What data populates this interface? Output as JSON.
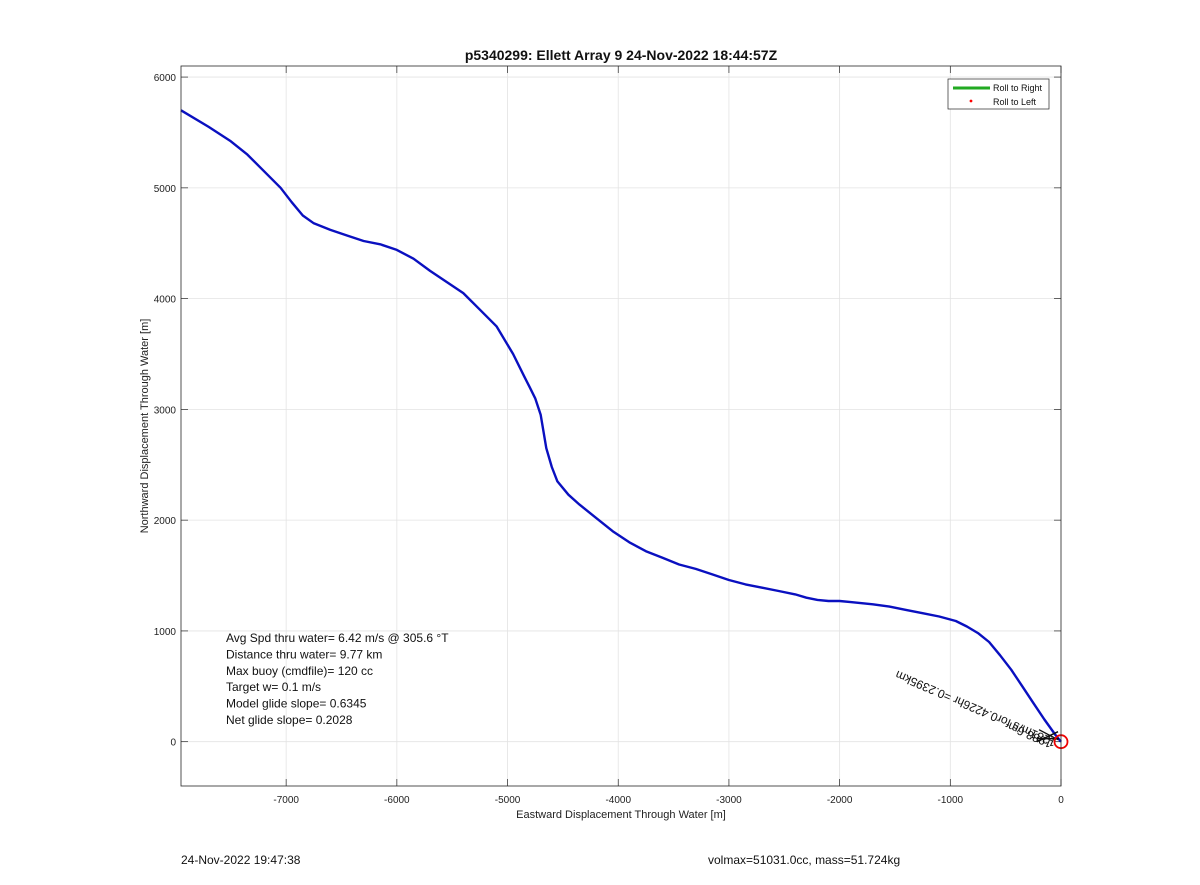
{
  "chart_data": {
    "type": "line",
    "title": "p5340299: Ellett Array 9 24-Nov-2022 18:44:57Z",
    "xlabel": "Eastward Displacement Through Water [m]",
    "ylabel": "Northward Displacement Through Water [m]",
    "xlim": [
      -7950,
      0
    ],
    "ylim": [
      -400,
      6100
    ],
    "xticks": [
      -7000,
      -6000,
      -5000,
      -4000,
      -3000,
      -2000,
      -1000,
      0
    ],
    "yticks": [
      0,
      1000,
      2000,
      3000,
      4000,
      5000,
      6000
    ],
    "grid": true,
    "legend": {
      "placement": "top-right",
      "entries": [
        {
          "label": "Roll to Right",
          "style": "line",
          "color": "#22aa22"
        },
        {
          "label": "Roll to Left",
          "style": "dot",
          "color": "#ff0000"
        }
      ]
    },
    "series": [
      {
        "color": "#0a10c0",
        "x": [
          -7950,
          -7700,
          -7500,
          -7350,
          -7200,
          -7050,
          -6950,
          -6850,
          -6750,
          -6600,
          -6450,
          -6300,
          -6150,
          -6000,
          -5850,
          -5700,
          -5550,
          -5400,
          -5250,
          -5100,
          -4950,
          -4850,
          -4800,
          -4750,
          -4700,
          -4650,
          -4600,
          -4550,
          -4450,
          -4350,
          -4200,
          -4050,
          -3900,
          -3750,
          -3600,
          -3450,
          -3300,
          -3150,
          -3000,
          -2850,
          -2700,
          -2550,
          -2400,
          -2300,
          -2200,
          -2100,
          -2000,
          -1900,
          -1800,
          -1700,
          -1550,
          -1400,
          -1250,
          -1100,
          -950,
          -850,
          -750,
          -650,
          -550,
          -450,
          -350,
          -250,
          -150,
          -50,
          0
        ],
        "y": [
          5700,
          5550,
          5420,
          5300,
          5150,
          5000,
          4870,
          4750,
          4680,
          4620,
          4570,
          4520,
          4490,
          4440,
          4360,
          4250,
          4150,
          4050,
          3900,
          3750,
          3500,
          3300,
          3200,
          3100,
          2950,
          2650,
          2480,
          2350,
          2230,
          2140,
          2020,
          1900,
          1800,
          1720,
          1660,
          1600,
          1560,
          1510,
          1460,
          1420,
          1390,
          1360,
          1330,
          1300,
          1280,
          1270,
          1270,
          1260,
          1250,
          1240,
          1220,
          1190,
          1160,
          1130,
          1090,
          1040,
          980,
          900,
          780,
          650,
          500,
          350,
          200,
          60,
          0
        ]
      }
    ],
    "annotations": {
      "arrow_label": "1281m/s for0.4226hr =0.2395km",
      "overlap_label": "1988.6m",
      "end_marker": {
        "x": 0,
        "y": 0,
        "color": "#ee0000"
      }
    }
  },
  "stats": [
    "Avg Spd thru water=  6.42 m/s @ 305.6 °T",
    "Distance thru water=  9.77 km",
    "Max buoy (cmdfile)= 120 cc",
    "Target w= 0.1 m/s",
    "Model glide slope= 0.6345",
    "Net glide slope= 0.2028"
  ],
  "footer": {
    "timestamp": "24-Nov-2022 19:47:38",
    "mass_info": "volmax=51031.0cc, mass=51.724kg"
  }
}
